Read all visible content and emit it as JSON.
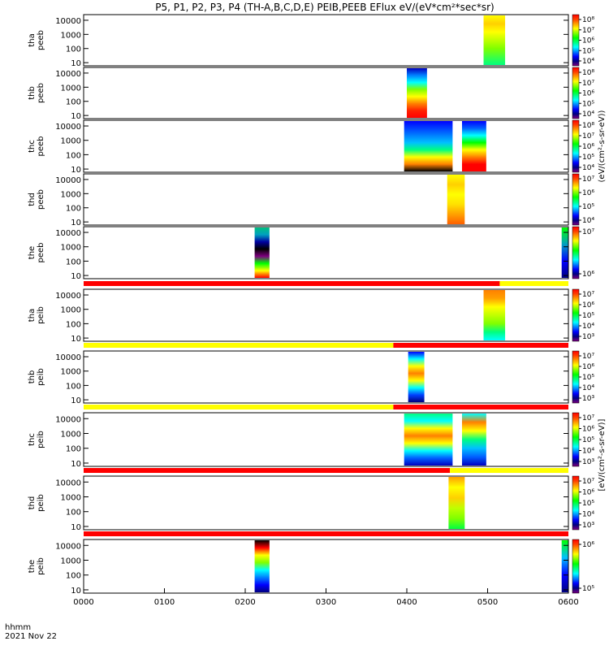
{
  "title": "P5, P1, P2, P3, P4 (TH-A,B,C,D,E) PEIB,PEEB EFlux eV/(eV*cm²*sec*sr)",
  "time_axis": {
    "corner_label_top": "hhmm",
    "corner_label_bottom": "2021 Nov 22",
    "ticks": [
      "0000",
      "0100",
      "0200",
      "0300",
      "0400",
      "0500",
      "0600"
    ]
  },
  "colorbar_title_eeb": "(eV/(cm²-s-sr-eV))",
  "colorbar_title_eib": "[eV/(cm²-s-sr-eV)]",
  "colors": {
    "flag_red": "#ff0000",
    "flag_yellow": "#ffff00",
    "colormap": [
      "#7f007f",
      "#000080",
      "#0000ff",
      "#0080ff",
      "#00ffff",
      "#00ff80",
      "#00ff00",
      "#80ff00",
      "#ffff00",
      "#ffa000",
      "#ff4000",
      "#ff0000"
    ]
  },
  "chart_data": [
    {
      "type": "heatmap",
      "probe": "tha",
      "species": "peeb",
      "label": [
        "tha",
        "peeb"
      ],
      "y_ticks": [
        "10",
        "100",
        "1000",
        "10000"
      ],
      "y_scale": "log",
      "cb_ticks": [
        "10⁴",
        "10⁵",
        "10⁶",
        "10⁷",
        "10⁸"
      ],
      "segments": [
        {
          "start": "04:57",
          "end": "05:13",
          "style": "tha_e"
        }
      ]
    },
    {
      "type": "heatmap",
      "probe": "thb",
      "species": "peeb",
      "label": [
        "thb",
        "peeb"
      ],
      "y_ticks": [
        "10",
        "100",
        "1000",
        "10000"
      ],
      "y_scale": "log",
      "cb_ticks": [
        "10⁴",
        "10⁵",
        "10⁶",
        "10⁷",
        "10⁸"
      ],
      "segments": [
        {
          "start": "04:00",
          "end": "04:15",
          "style": "thb_e"
        }
      ]
    },
    {
      "type": "heatmap",
      "probe": "thc",
      "species": "peeb",
      "label": [
        "thc",
        "peeb"
      ],
      "y_ticks": [
        "10",
        "100",
        "1000",
        "10000"
      ],
      "y_scale": "log",
      "cb_ticks": [
        "10⁴",
        "10⁵",
        "10⁶",
        "10⁷",
        "10⁸"
      ],
      "segments": [
        {
          "start": "03:58",
          "end": "04:34",
          "style": "thc_e1"
        },
        {
          "start": "04:41",
          "end": "04:59",
          "style": "thc_e2"
        }
      ]
    },
    {
      "type": "heatmap",
      "probe": "thd",
      "species": "peeb",
      "label": [
        "thd",
        "peeb"
      ],
      "y_ticks": [
        "10",
        "100",
        "1000",
        "10000"
      ],
      "y_scale": "log",
      "cb_ticks": [
        "10⁴",
        "10⁵",
        "10⁶",
        "10⁷"
      ],
      "segments": [
        {
          "start": "04:30",
          "end": "04:43",
          "style": "thd_e"
        }
      ]
    },
    {
      "type": "heatmap",
      "probe": "the",
      "species": "peeb",
      "label": [
        "the",
        "peeb"
      ],
      "y_ticks": [
        "10",
        "100",
        "1000",
        "10000"
      ],
      "y_scale": "log",
      "cb_ticks": [
        "10⁶",
        "10⁷"
      ],
      "segments": [
        {
          "start": "02:07",
          "end": "02:18",
          "style": "the_e"
        },
        {
          "start": "05:55",
          "end": "06:00",
          "style": "edge_e"
        }
      ]
    },
    {
      "type": "heatmap",
      "probe": "tha",
      "species": "peib",
      "label": [
        "tha",
        "peib"
      ],
      "y_ticks": [
        "10",
        "100",
        "1000",
        "10000"
      ],
      "y_scale": "log",
      "cb_ticks": [
        "10³",
        "10⁴",
        "10⁵",
        "10⁶",
        "10⁷"
      ],
      "flag": [
        {
          "start": "00:00",
          "end": "05:09",
          "color": "red"
        },
        {
          "start": "05:09",
          "end": "06:00",
          "color": "yellow"
        }
      ],
      "segments": [
        {
          "start": "04:57",
          "end": "05:13",
          "style": "tha_i"
        }
      ]
    },
    {
      "type": "heatmap",
      "probe": "thb",
      "species": "peib",
      "label": [
        "thb",
        "peib"
      ],
      "y_ticks": [
        "10",
        "100",
        "1000",
        "10000"
      ],
      "y_scale": "log",
      "cb_ticks": [
        "10³",
        "10⁴",
        "10⁵",
        "10⁶",
        "10⁷"
      ],
      "flag": [
        {
          "start": "00:00",
          "end": "03:50",
          "color": "yellow"
        },
        {
          "start": "03:50",
          "end": "06:00",
          "color": "red"
        }
      ],
      "segments": [
        {
          "start": "04:01",
          "end": "04:13",
          "style": "thb_i"
        }
      ]
    },
    {
      "type": "heatmap",
      "probe": "thc",
      "species": "peib",
      "label": [
        "thc",
        "peib"
      ],
      "y_ticks": [
        "10",
        "100",
        "1000",
        "10000"
      ],
      "y_scale": "log",
      "cb_ticks": [
        "10³",
        "10⁴",
        "10⁵",
        "10⁶",
        "10⁷"
      ],
      "flag": [
        {
          "start": "00:00",
          "end": "03:50",
          "color": "yellow"
        },
        {
          "start": "03:50",
          "end": "06:00",
          "color": "red"
        }
      ],
      "segments": [
        {
          "start": "03:58",
          "end": "04:34",
          "style": "thc_i1"
        },
        {
          "start": "04:41",
          "end": "04:59",
          "style": "thc_i2"
        }
      ]
    },
    {
      "type": "heatmap",
      "probe": "thd",
      "species": "peib",
      "label": [
        "thd",
        "peib"
      ],
      "y_ticks": [
        "10",
        "100",
        "1000",
        "10000"
      ],
      "y_scale": "log",
      "cb_ticks": [
        "10³",
        "10⁴",
        "10⁵",
        "10⁶",
        "10⁷"
      ],
      "flag": [
        {
          "start": "00:00",
          "end": "04:32",
          "color": "red"
        },
        {
          "start": "04:32",
          "end": "06:00",
          "color": "yellow"
        }
      ],
      "segments": [
        {
          "start": "04:31",
          "end": "04:43",
          "style": "thd_i"
        }
      ]
    },
    {
      "type": "heatmap",
      "probe": "the",
      "species": "peib",
      "label": [
        "the",
        "peib"
      ],
      "y_ticks": [
        "10",
        "100",
        "1000",
        "10000"
      ],
      "y_scale": "log",
      "cb_ticks": [
        "10⁵",
        "10⁶"
      ],
      "flag": [
        {
          "start": "00:00",
          "end": "06:00",
          "color": "red"
        }
      ],
      "segments": [
        {
          "start": "02:07",
          "end": "02:18",
          "style": "the_i"
        },
        {
          "start": "05:55",
          "end": "06:00",
          "style": "edge_i"
        }
      ]
    }
  ]
}
